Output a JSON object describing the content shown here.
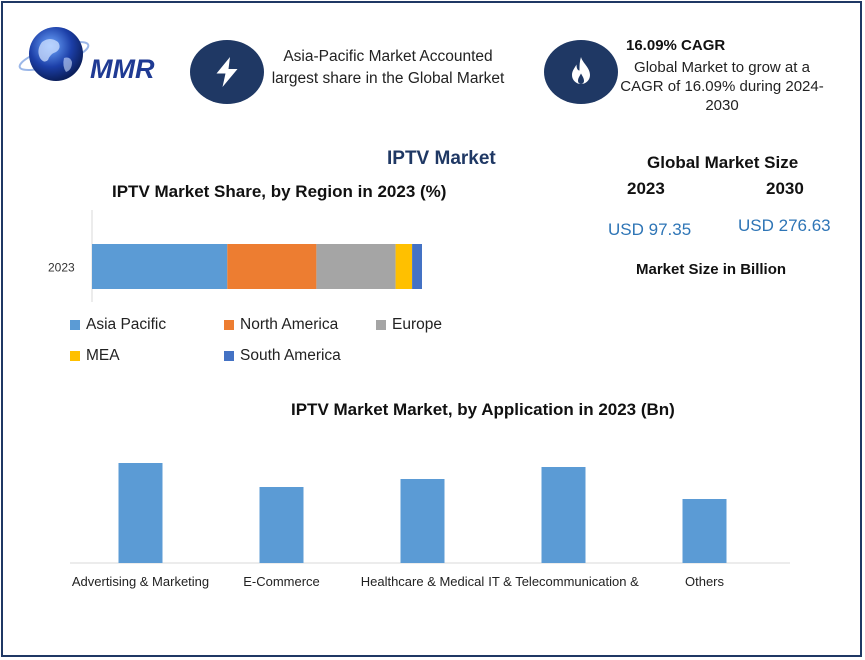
{
  "logo": {
    "text": "MMR"
  },
  "highlights": [
    {
      "icon": "lightning-icon",
      "text": "Asia-Pacific Market Accounted largest share in the Global Market"
    },
    {
      "icon": "flame-icon",
      "title": "16.09% CAGR",
      "text": "Global Market to grow at a CAGR of 16.09% during 2024-2030"
    }
  ],
  "title": "IPTV Market",
  "market_size": {
    "title": "Global Market Size",
    "year_a": "2023",
    "year_b": "2030",
    "value_a": "USD 97.35",
    "value_b": "USD 276.63",
    "unit_note": "Market Size in Billion"
  },
  "colors": {
    "navy": "#1f3864",
    "asia_pacific": "#5b9bd5",
    "north_america": "#ed7d31",
    "europe": "#a5a5a5",
    "mea": "#ffc000",
    "south_america": "#4472c4",
    "application_bar": "#5b9bd5"
  },
  "chart_data": [
    {
      "type": "bar",
      "orientation": "horizontal-stacked",
      "title": "IPTV Market Share, by Region in 2023 (%)",
      "categories": [
        "2023"
      ],
      "series": [
        {
          "name": "Asia Pacific",
          "values": [
            41
          ]
        },
        {
          "name": "North America",
          "values": [
            27
          ]
        },
        {
          "name": "Europe",
          "values": [
            24
          ]
        },
        {
          "name": "MEA",
          "values": [
            5
          ]
        },
        {
          "name": "South America",
          "values": [
            3
          ]
        }
      ],
      "legend": "bottom"
    },
    {
      "type": "bar",
      "title": "IPTV Market Market, by Application in 2023 (Bn)",
      "categories": [
        "Advertising & Marketing",
        "E-Commerce",
        "Healthcare & Medical",
        "IT & Telecommunication &",
        "Others"
      ],
      "values": [
        25,
        19,
        21,
        24,
        16
      ],
      "ylim": [
        0,
        27
      ],
      "grid": false
    }
  ]
}
